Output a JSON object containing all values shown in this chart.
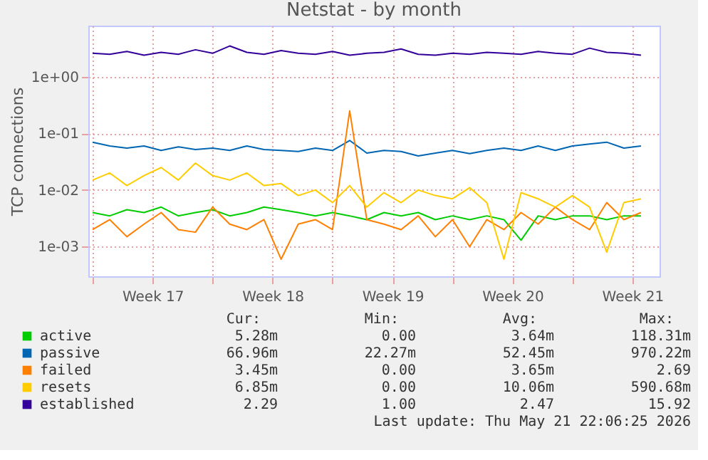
{
  "chart_data": {
    "type": "line",
    "title": "Netstat - by month",
    "ylabel": "TCP connections",
    "x": [
      "2026-04-20T00:00",
      "2026-04-21T00:00",
      "2026-04-22T00:00",
      "2026-04-23T00:00",
      "2026-04-24T00:00",
      "2026-04-25T00:00",
      "2026-04-26T00:00",
      "2026-04-27T00:00",
      "2026-04-28T00:00",
      "2026-04-29T00:00",
      "2026-04-30T00:00",
      "2026-05-01T00:00",
      "2026-05-02T00:00",
      "2026-05-03T00:00",
      "2026-05-04T00:00",
      "2026-05-05T00:00",
      "2026-05-06T00:00",
      "2026-05-07T00:00",
      "2026-05-08T00:00",
      "2026-05-09T00:00",
      "2026-05-10T00:00",
      "2026-05-11T00:00",
      "2026-05-12T00:00",
      "2026-05-13T00:00",
      "2026-05-14T00:00",
      "2026-05-15T00:00",
      "2026-05-16T00:00",
      "2026-05-17T00:00",
      "2026-05-18T00:00",
      "2026-05-19T00:00",
      "2026-05-20T00:00",
      "2026-05-21T00:00",
      "2026-05-22T00:00"
    ],
    "series": [
      {
        "name": "active",
        "color": "#00cc00",
        "values": [
          0.004,
          0.0035,
          0.0045,
          0.004,
          0.005,
          0.0035,
          0.004,
          0.0045,
          0.0035,
          0.004,
          0.005,
          0.0045,
          0.004,
          0.0035,
          0.004,
          0.0035,
          0.003,
          0.004,
          0.0035,
          0.004,
          0.003,
          0.0035,
          0.003,
          0.0035,
          0.003,
          0.0013,
          0.0035,
          0.003,
          0.0035,
          0.0035,
          0.003,
          0.0035,
          0.0035
        ]
      },
      {
        "name": "passive",
        "color": "#0066b3",
        "values": [
          0.07,
          0.06,
          0.055,
          0.06,
          0.05,
          0.058,
          0.052,
          0.055,
          0.05,
          0.06,
          0.052,
          0.05,
          0.048,
          0.055,
          0.05,
          0.075,
          0.045,
          0.05,
          0.048,
          0.04,
          0.045,
          0.05,
          0.044,
          0.05,
          0.055,
          0.05,
          0.06,
          0.05,
          0.06,
          0.065,
          0.07,
          0.055,
          0.06
        ]
      },
      {
        "name": "failed",
        "color": "#ff8000",
        "values": [
          0.002,
          0.003,
          0.0015,
          0.0025,
          0.004,
          0.002,
          0.0018,
          0.005,
          0.0025,
          0.002,
          0.003,
          0.0006,
          0.0025,
          0.003,
          0.002,
          0.25,
          0.003,
          0.0025,
          0.002,
          0.0035,
          0.0015,
          0.003,
          0.001,
          0.003,
          0.002,
          0.004,
          0.0025,
          0.005,
          0.003,
          0.002,
          0.006,
          0.003,
          0.004
        ]
      },
      {
        "name": "resets",
        "color": "#ffcc00",
        "values": [
          0.015,
          0.02,
          0.012,
          0.018,
          0.025,
          0.015,
          0.03,
          0.018,
          0.015,
          0.02,
          0.012,
          0.013,
          0.008,
          0.01,
          0.006,
          0.012,
          0.005,
          0.009,
          0.006,
          0.01,
          0.008,
          0.007,
          0.011,
          0.006,
          0.0006,
          0.009,
          0.007,
          0.005,
          0.008,
          0.005,
          0.0008,
          0.006,
          0.007
        ]
      },
      {
        "name": "established",
        "color": "#330099",
        "values": [
          2.6,
          2.5,
          2.8,
          2.4,
          2.7,
          2.5,
          3.0,
          2.6,
          3.5,
          2.7,
          2.5,
          2.9,
          2.6,
          2.5,
          2.8,
          2.4,
          2.6,
          2.7,
          3.1,
          2.5,
          2.4,
          2.6,
          2.5,
          2.7,
          2.6,
          2.5,
          2.8,
          2.6,
          2.5,
          3.2,
          2.7,
          2.6,
          2.4
        ]
      }
    ],
    "log": true,
    "ylim": [
      0.0003,
      8
    ],
    "yticks": [
      {
        "value": 0.001,
        "label": "1e-03"
      },
      {
        "value": 0.01,
        "label": "1e-02"
      },
      {
        "value": 0.1,
        "label": "1e-01"
      },
      {
        "value": 1,
        "label": "1e+00"
      }
    ],
    "xlim": [
      "2026-04-19T18:00",
      "2026-05-23T02:00"
    ],
    "xticks": [
      {
        "value": "2026-04-20T00:00",
        "label": null
      },
      {
        "value": "2026-04-23T12:00",
        "label": "Week 17"
      },
      {
        "value": "2026-04-27T00:00",
        "label": null
      },
      {
        "value": "2026-04-30T12:00",
        "label": "Week 18"
      },
      {
        "value": "2026-05-04T00:00",
        "label": null
      },
      {
        "value": "2026-05-07T12:00",
        "label": "Week 19"
      },
      {
        "value": "2026-05-11T00:00",
        "label": null
      },
      {
        "value": "2026-05-14T12:00",
        "label": "Week 20"
      },
      {
        "value": "2026-05-18T00:00",
        "label": null
      },
      {
        "value": "2026-05-21T12:00",
        "label": "Week 21"
      }
    ],
    "grid": true,
    "legend": "bottom",
    "line_style": "solid",
    "marker": "none",
    "annotations": [
      "Cur:",
      "Min:",
      "Avg:",
      "Max:",
      "5.28m",
      "0.00",
      "3.64m",
      "118.31m",
      "66.96m",
      "22.27m",
      "52.45m",
      "970.22m",
      "3.45m",
      "0.00",
      "3.65m",
      "2.69",
      "6.85m",
      "0.00",
      "10.06m",
      "590.68m",
      "2.29",
      "1.00",
      "2.47",
      "15.92",
      "Last update: Thu May 21 22:06:25 2026"
    ]
  }
}
